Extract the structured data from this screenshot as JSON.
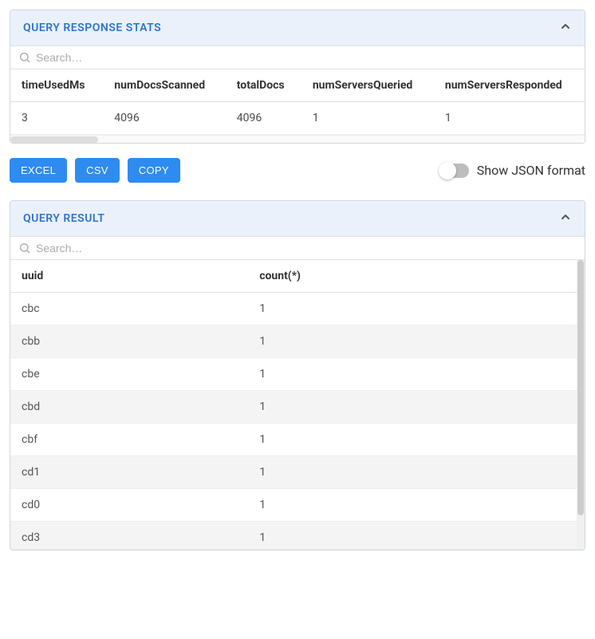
{
  "colors": {
    "header_bg": "#eaf1fb",
    "header_text": "#2e74d0",
    "button_bg": "#2e8bf0",
    "button_text": "#ffffff",
    "border": "#d0d7de",
    "row_alt": "#f4f4f4",
    "toggle_track": "#bdbdbd",
    "text": "#4a4a4a"
  },
  "stats_panel": {
    "title": "QUERY RESPONSE STATS",
    "search_placeholder": "Search…",
    "columns": [
      "timeUsedMs",
      "numDocsScanned",
      "totalDocs",
      "numServersQueried",
      "numServersResponded"
    ],
    "rows": [
      [
        "3",
        "4096",
        "4096",
        "1",
        "1"
      ]
    ]
  },
  "toolbar": {
    "excel_label": "EXCEL",
    "csv_label": "CSV",
    "copy_label": "COPY",
    "toggle_label": "Show JSON format",
    "toggle_on": false
  },
  "result_panel": {
    "title": "QUERY RESULT",
    "search_placeholder": "Search…",
    "columns": [
      "uuid",
      "count(*)"
    ],
    "rows": [
      [
        "cbc",
        "1"
      ],
      [
        "cbb",
        "1"
      ],
      [
        "cbe",
        "1"
      ],
      [
        "cbd",
        "1"
      ],
      [
        "cbf",
        "1"
      ],
      [
        "cd1",
        "1"
      ],
      [
        "cd0",
        "1"
      ],
      [
        "cd3",
        "1"
      ]
    ]
  }
}
